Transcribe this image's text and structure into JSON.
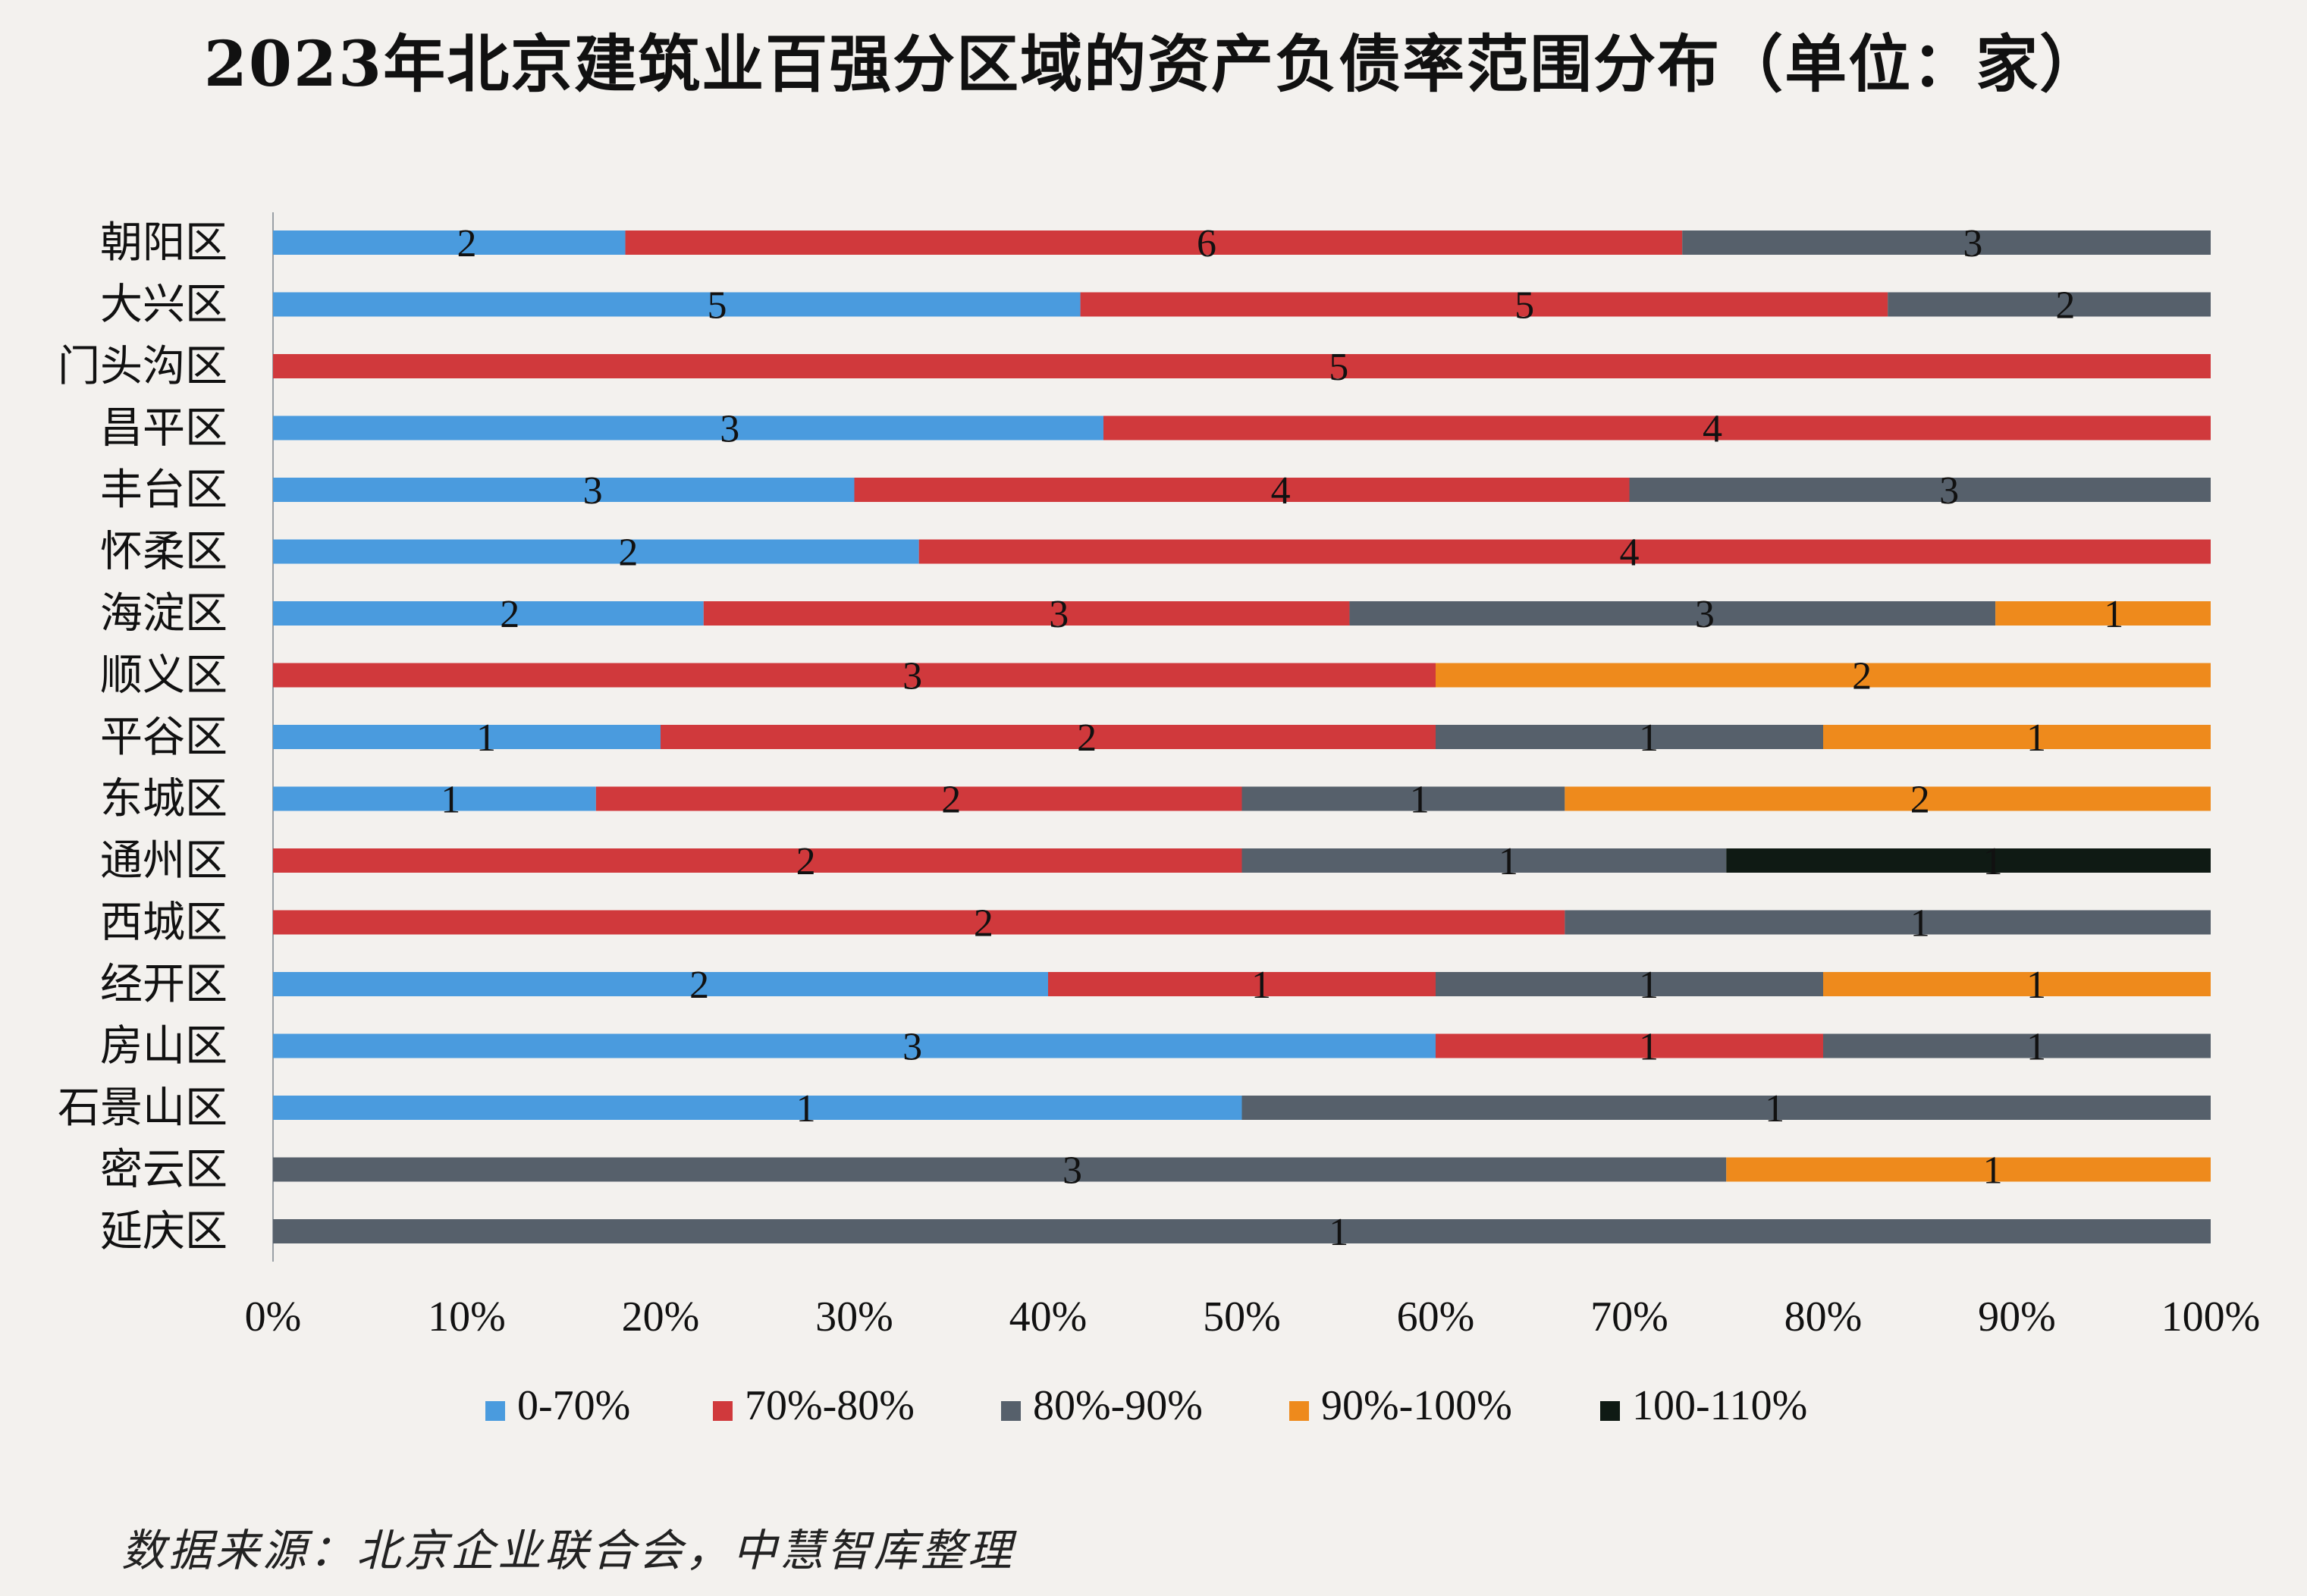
{
  "chart_data": {
    "type": "bar",
    "orientation": "horizontal",
    "stacked": true,
    "normalized_percent": true,
    "title": "2023年北京建筑业百强分区域的资产负债率范围分布（单位：家）",
    "categories": [
      "朝阳区",
      "大兴区",
      "门头沟区",
      "昌平区",
      "丰台区",
      "怀柔区",
      "海淀区",
      "顺义区",
      "平谷区",
      "东城区",
      "通州区",
      "西城区",
      "经开区",
      "房山区",
      "石景山区",
      "密云区",
      "延庆区"
    ],
    "series": [
      {
        "name": "0-70%",
        "color": "#4a9bde",
        "values": [
          2,
          5,
          0,
          3,
          3,
          2,
          2,
          0,
          1,
          1,
          0,
          0,
          2,
          3,
          1,
          0,
          0
        ]
      },
      {
        "name": "70%-80%",
        "color": "#d0393c",
        "values": [
          6,
          5,
          5,
          4,
          4,
          4,
          3,
          3,
          2,
          2,
          2,
          2,
          1,
          1,
          0,
          0,
          0
        ]
      },
      {
        "name": "80%-90%",
        "color": "#56606b",
        "values": [
          3,
          2,
          0,
          0,
          3,
          0,
          3,
          0,
          1,
          1,
          1,
          1,
          1,
          1,
          1,
          3,
          1
        ]
      },
      {
        "name": "90%-100%",
        "color": "#ee8a1c",
        "values": [
          0,
          0,
          0,
          0,
          0,
          0,
          1,
          2,
          1,
          2,
          0,
          0,
          1,
          0,
          0,
          1,
          0
        ]
      },
      {
        "name": "100-110%",
        "color": "#0f1a14",
        "values": [
          0,
          0,
          0,
          0,
          0,
          0,
          0,
          0,
          0,
          0,
          1,
          0,
          0,
          0,
          0,
          0,
          0
        ]
      }
    ],
    "x_ticks": [
      "0%",
      "10%",
      "20%",
      "30%",
      "40%",
      "50%",
      "60%",
      "70%",
      "80%",
      "90%",
      "100%"
    ],
    "xlim": [
      0,
      100
    ],
    "grid": false,
    "legend_position": "bottom",
    "source": "数据来源：北京企业联合会，中慧智库整理"
  }
}
